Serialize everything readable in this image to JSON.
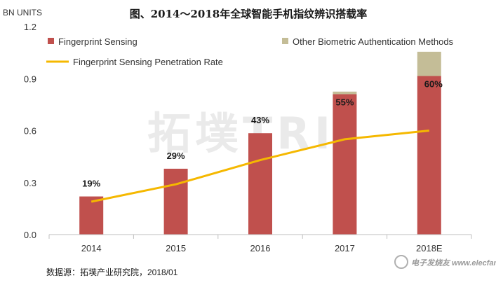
{
  "title": "图、2014～2018年全球智能手机指纹辨识搭载率",
  "unit_label": "BN UNITS",
  "source": "数据源：拓墣产业研究院，2018/01",
  "watermark": "拓墣TRI",
  "corner_logo": "电子发烧友 www.elecfans.com",
  "colors": {
    "fingerprint": "#c0504d",
    "other": "#c4bd97",
    "penetration": "#f5b800",
    "grid": "#d9d9d9",
    "axis": "#bfbfbf"
  },
  "chart_data": {
    "type": "bar",
    "stacked": true,
    "categories": [
      "2014",
      "2015",
      "2016",
      "2017",
      "2018E"
    ],
    "series": [
      {
        "name": "Fingerprint Sensing",
        "values": [
          0.22,
          0.38,
          0.585,
          0.81,
          0.915
        ]
      },
      {
        "name": "Other Biometric Authentication Methods",
        "values": [
          0.0,
          0.0,
          0.0,
          0.015,
          0.14
        ]
      }
    ],
    "line_series": {
      "name": "Fingerprint Sensing Penetration Rate",
      "values": [
        19,
        29,
        43,
        55,
        60
      ],
      "labels": [
        "19%",
        "29%",
        "43%",
        "55%",
        "60%"
      ]
    },
    "ylim": [
      0,
      1.2
    ],
    "yticks": [
      "0.0",
      "0.3",
      "0.6",
      "0.9",
      "1.2"
    ],
    "ylabel": "BN UNITS",
    "legend_position": "top",
    "grid": false
  }
}
